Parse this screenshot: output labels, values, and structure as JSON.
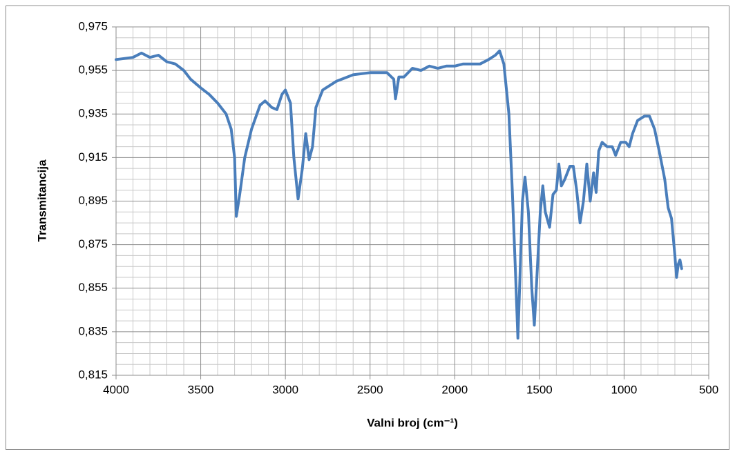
{
  "chart_data": {
    "type": "line",
    "x_label": "Valni broj (cm⁻¹)",
    "y_label": "Transmitancija",
    "x": [
      4000,
      3900,
      3850,
      3800,
      3750,
      3700,
      3650,
      3600,
      3560,
      3500,
      3450,
      3400,
      3350,
      3320,
      3300,
      3290,
      3270,
      3240,
      3200,
      3150,
      3120,
      3080,
      3050,
      3020,
      3000,
      2970,
      2950,
      2925,
      2900,
      2880,
      2860,
      2840,
      2820,
      2780,
      2700,
      2600,
      2500,
      2400,
      2360,
      2350,
      2330,
      2300,
      2250,
      2200,
      2150,
      2100,
      2050,
      2000,
      1950,
      1900,
      1850,
      1800,
      1760,
      1735,
      1710,
      1680,
      1660,
      1640,
      1627,
      1615,
      1600,
      1585,
      1565,
      1545,
      1530,
      1515,
      1495,
      1480,
      1465,
      1440,
      1420,
      1400,
      1385,
      1370,
      1350,
      1320,
      1300,
      1280,
      1260,
      1240,
      1220,
      1200,
      1180,
      1165,
      1150,
      1130,
      1100,
      1070,
      1050,
      1020,
      990,
      970,
      950,
      920,
      880,
      850,
      820,
      790,
      760,
      740,
      720,
      700,
      690,
      680,
      670,
      660
    ],
    "values": [
      0.96,
      0.961,
      0.963,
      0.961,
      0.962,
      0.959,
      0.958,
      0.955,
      0.951,
      0.947,
      0.944,
      0.94,
      0.935,
      0.928,
      0.915,
      0.888,
      0.898,
      0.915,
      0.928,
      0.939,
      0.941,
      0.938,
      0.937,
      0.944,
      0.946,
      0.94,
      0.915,
      0.896,
      0.91,
      0.926,
      0.914,
      0.92,
      0.938,
      0.946,
      0.95,
      0.953,
      0.954,
      0.954,
      0.951,
      0.942,
      0.952,
      0.952,
      0.956,
      0.955,
      0.957,
      0.956,
      0.957,
      0.957,
      0.958,
      0.958,
      0.958,
      0.96,
      0.962,
      0.964,
      0.958,
      0.935,
      0.9,
      0.86,
      0.832,
      0.86,
      0.895,
      0.906,
      0.89,
      0.855,
      0.838,
      0.86,
      0.89,
      0.902,
      0.89,
      0.883,
      0.898,
      0.9,
      0.912,
      0.902,
      0.905,
      0.911,
      0.911,
      0.9,
      0.885,
      0.895,
      0.912,
      0.895,
      0.908,
      0.899,
      0.918,
      0.922,
      0.92,
      0.92,
      0.916,
      0.922,
      0.922,
      0.92,
      0.926,
      0.932,
      0.934,
      0.934,
      0.928,
      0.917,
      0.905,
      0.892,
      0.887,
      0.87,
      0.86,
      0.866,
      0.868,
      0.864
    ],
    "color": "#4a7ebb",
    "xlim": [
      4000,
      500
    ],
    "xticks": [
      4000,
      3500,
      3000,
      2500,
      2000,
      1500,
      1000,
      500
    ],
    "ylim": [
      0.815,
      0.975
    ],
    "yticks": [
      {
        "value": 0.815,
        "label": "0,815"
      },
      {
        "value": 0.835,
        "label": "0,835"
      },
      {
        "value": 0.855,
        "label": "0,855"
      },
      {
        "value": 0.875,
        "label": "0,875"
      },
      {
        "value": 0.895,
        "label": "0,895"
      },
      {
        "value": 0.915,
        "label": "0,915"
      },
      {
        "value": 0.935,
        "label": "0,935"
      },
      {
        "value": 0.955,
        "label": "0,955"
      },
      {
        "value": 0.975,
        "label": "0,975"
      }
    ],
    "grid": true
  }
}
